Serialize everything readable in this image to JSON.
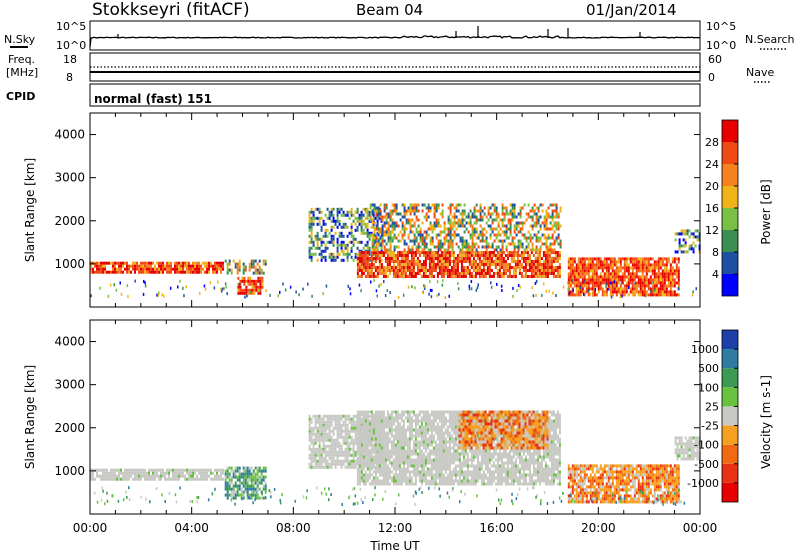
{
  "header": {
    "station": "Stokkseyri (fitACF)",
    "beam": "Beam 04",
    "date": "01/Jan/2014"
  },
  "noise_panel": {
    "left_label": "N.Sky",
    "right_label": "N.Search",
    "left_ticks": [
      "10^5",
      "10^0"
    ],
    "right_ticks": [
      "10^5",
      "10^0"
    ]
  },
  "freq_panel": {
    "left_label_line1": "Freq.",
    "left_label_line2": "[MHz]",
    "left_ticks": [
      "18",
      "8"
    ],
    "right_label": "Nave",
    "right_ticks": [
      "60",
      "0"
    ]
  },
  "cpid": {
    "label": "CPID",
    "value": "normal (fast) 151"
  },
  "chart_data": [
    {
      "type": "heatmap",
      "title": "",
      "ylabel": "Slant Range [km]",
      "xlabel": "",
      "x_tick_labels": [],
      "y_tick_labels": [
        "1000",
        "2000",
        "3000",
        "4000"
      ],
      "ylim": [
        0,
        4500
      ],
      "xlim_hours": [
        0,
        24
      ],
      "colorbar": {
        "label": "Power [dB]",
        "ticks": [
          "4",
          "8",
          "12",
          "16",
          "20",
          "24",
          "28"
        ],
        "colors": [
          "#0000ff",
          "#1f4fa0",
          "#3a8f50",
          "#7ac043",
          "#f0b418",
          "#f5821e",
          "#f04a14",
          "#e60000"
        ]
      },
      "echo_regions": [
        {
          "t0": 0.0,
          "t1": 5.2,
          "r0": 820,
          "r1": 1050,
          "level": "strong"
        },
        {
          "t0": 5.3,
          "t1": 6.9,
          "r0": 780,
          "r1": 1100,
          "level": "medium"
        },
        {
          "t0": 5.8,
          "t1": 6.8,
          "r0": 350,
          "r1": 700,
          "level": "strong"
        },
        {
          "t0": 8.6,
          "t1": 11.5,
          "r0": 1100,
          "r1": 2300,
          "level": "weak"
        },
        {
          "t0": 10.5,
          "t1": 18.5,
          "r0": 700,
          "r1": 1300,
          "level": "strong"
        },
        {
          "t0": 11.0,
          "t1": 18.5,
          "r0": 1300,
          "r1": 2400,
          "level": "medium"
        },
        {
          "t0": 18.8,
          "t1": 23.2,
          "r0": 300,
          "r1": 1150,
          "level": "strong"
        },
        {
          "t0": 23.0,
          "t1": 24.0,
          "r0": 1300,
          "r1": 1800,
          "level": "weak"
        }
      ]
    },
    {
      "type": "heatmap",
      "title": "",
      "ylabel": "Slant Range [km]",
      "xlabel": "Time UT",
      "x_tick_labels": [
        "00:00",
        "04:00",
        "08:00",
        "12:00",
        "16:00",
        "20:00",
        "00:00"
      ],
      "y_tick_labels": [
        "1000",
        "2000",
        "3000",
        "4000"
      ],
      "ylim": [
        0,
        4500
      ],
      "xlim_hours": [
        0,
        24
      ],
      "colorbar": {
        "label": "Velocity [m s-1]",
        "ticks": [
          "1000",
          "500",
          "100",
          "25",
          "-25",
          "-100",
          "-500",
          "-1000"
        ],
        "colors": [
          "#1c3fa8",
          "#2e7da0",
          "#3c9b52",
          "#68c23e",
          "#c8c8c4",
          "#f5a020",
          "#f06a14",
          "#e83214",
          "#e60000"
        ]
      },
      "echo_regions": [
        {
          "t0": 0.0,
          "t1": 5.2,
          "r0": 820,
          "r1": 1050,
          "level": "ground"
        },
        {
          "t0": 5.3,
          "t1": 6.9,
          "r0": 350,
          "r1": 1100,
          "level": "green"
        },
        {
          "t0": 8.6,
          "t1": 11.5,
          "r0": 1100,
          "r1": 2300,
          "level": "ground"
        },
        {
          "t0": 10.5,
          "t1": 18.5,
          "r0": 700,
          "r1": 2400,
          "level": "ground"
        },
        {
          "t0": 14.5,
          "t1": 18.0,
          "r0": 1500,
          "r1": 2400,
          "level": "orange"
        },
        {
          "t0": 18.8,
          "t1": 23.2,
          "r0": 300,
          "r1": 1150,
          "level": "orange"
        },
        {
          "t0": 23.0,
          "t1": 24.0,
          "r0": 1300,
          "r1": 1800,
          "level": "ground"
        }
      ]
    }
  ]
}
